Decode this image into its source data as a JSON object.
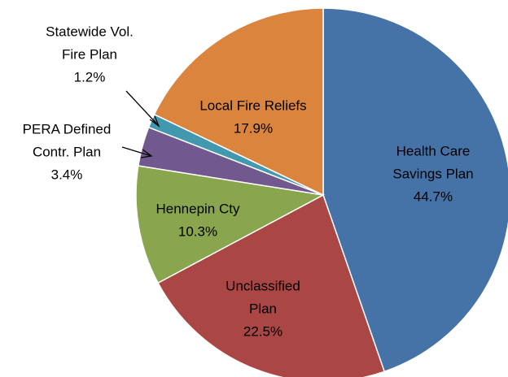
{
  "chart_data": {
    "type": "pie",
    "categories": [
      [
        "Health Care",
        "Savings Plan"
      ],
      [
        "Unclassified",
        "Plan"
      ],
      [
        "Hennepin Cty"
      ],
      [
        "PERA Defined",
        "Contr. Plan"
      ],
      [
        "Statewide Vol.",
        "Fire Plan"
      ],
      [
        "Local Fire Reliefs"
      ]
    ],
    "values": [
      44.7,
      22.5,
      10.3,
      3.4,
      1.2,
      17.9
    ],
    "value_labels": [
      "44.7%",
      "22.5%",
      "10.3%",
      "3.4%",
      "1.2%",
      "17.9%"
    ],
    "colors": [
      "#4572a7",
      "#aa4643",
      "#89a54e",
      "#71588f",
      "#4198af",
      "#db843d"
    ]
  }
}
